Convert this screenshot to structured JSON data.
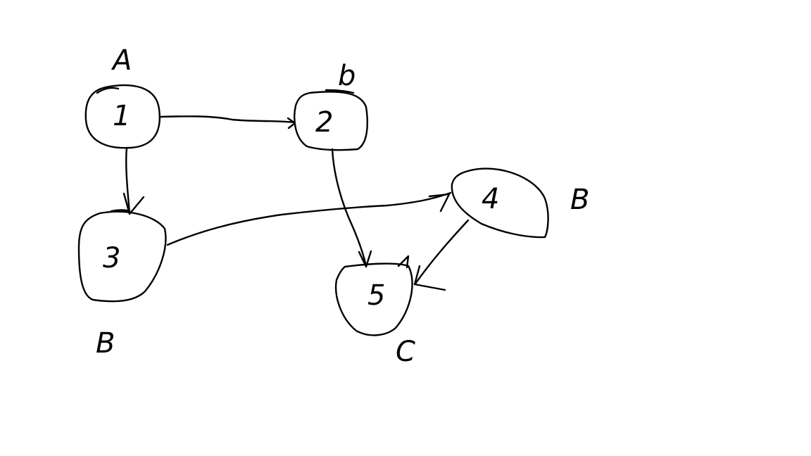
{
  "nodes": [
    {
      "id": "1",
      "label": "1",
      "group": "A"
    },
    {
      "id": "2",
      "label": "2",
      "group": "b"
    },
    {
      "id": "3",
      "label": "3",
      "group": "B"
    },
    {
      "id": "4",
      "label": "4",
      "group": "B"
    },
    {
      "id": "5",
      "label": "5",
      "group": "C"
    }
  ],
  "edges": [
    {
      "from": "1",
      "to": "2"
    },
    {
      "from": "1",
      "to": "3"
    },
    {
      "from": "3",
      "to": "4"
    },
    {
      "from": "2",
      "to": "5"
    },
    {
      "from": "4",
      "to": "5"
    }
  ],
  "colors": {
    "background": "#ffffff",
    "ink": "#000000"
  }
}
